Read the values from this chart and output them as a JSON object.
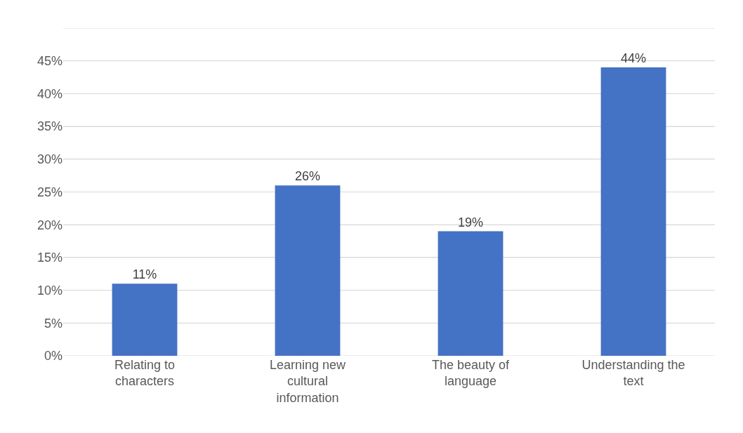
{
  "chart_data": {
    "type": "bar",
    "categories": [
      "Relating to characters",
      "Learning new cultural information",
      "The beauty of language",
      "Understanding the text"
    ],
    "values": [
      11,
      26,
      19,
      44
    ],
    "value_labels": [
      "11%",
      "26%",
      "19%",
      "44%"
    ],
    "color": "#4472c4",
    "ylim": [
      0,
      50
    ],
    "yticks": [
      {
        "value": 0,
        "label": "0%"
      },
      {
        "value": 5,
        "label": "5%"
      },
      {
        "value": 10,
        "label": "10%"
      },
      {
        "value": 15,
        "label": "15%"
      },
      {
        "value": 20,
        "label": "20%"
      },
      {
        "value": 25,
        "label": "25%"
      },
      {
        "value": 30,
        "label": "30%"
      },
      {
        "value": 35,
        "label": "35%"
      },
      {
        "value": 40,
        "label": "40%"
      },
      {
        "value": 45,
        "label": "45%"
      },
      {
        "value": 50,
        "label": null
      }
    ],
    "grid": "y"
  }
}
